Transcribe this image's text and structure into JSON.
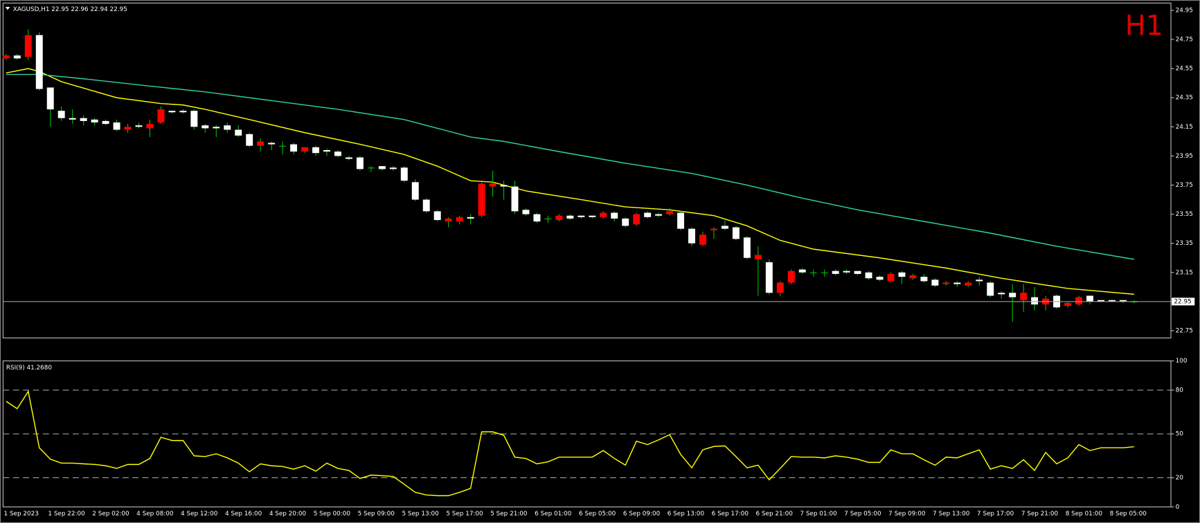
{
  "chart_data": [
    {
      "type": "candlestick",
      "title": "XAGUSD,H1  22.95 22.96 22.94 22.95",
      "annotation": "H1",
      "categories": [
        "1 Sep 2023",
        null,
        null,
        null,
        "1 Sep 22:00",
        null,
        null,
        null,
        "2 Sep 02:00",
        null,
        null,
        null,
        "4 Sep 08:00",
        null,
        null,
        null,
        "4 Sep 12:00",
        null,
        null,
        null,
        "4 Sep 16:00",
        null,
        null,
        null,
        "4 Sep 20:00",
        null,
        null,
        null,
        "5 Sep 00:00",
        null,
        null,
        null,
        "5 Sep 09:00",
        null,
        null,
        null,
        "5 Sep 13:00",
        null,
        null,
        null,
        "5 Sep 17:00",
        null,
        null,
        null,
        "5 Sep 21:00",
        null,
        null,
        null,
        "6 Sep 01:00",
        null,
        null,
        null,
        "6 Sep 05:00",
        null,
        null,
        null,
        "6 Sep 09:00",
        null,
        null,
        null,
        "6 Sep 13:00",
        null,
        null,
        null,
        "6 Sep 17:00",
        null,
        null,
        null,
        "6 Sep 21:00",
        null,
        null,
        null,
        "7 Sep 01:00",
        null,
        null,
        null,
        "7 Sep 05:00",
        null,
        null,
        null,
        "7 Sep 09:00",
        null,
        null,
        null,
        "7 Sep 13:00",
        null,
        null,
        null,
        "7 Sep 17:00",
        null,
        null,
        null,
        "7 Sep 21:00",
        null,
        null,
        null,
        "8 Sep 01:00",
        null,
        null,
        null,
        "8 Sep 05:00",
        null,
        null
      ],
      "ohlc": [
        [
          24.62,
          24.65,
          24.61,
          24.64
        ],
        [
          24.64,
          24.65,
          24.61,
          24.62
        ],
        [
          24.63,
          24.82,
          24.61,
          24.78
        ],
        [
          24.78,
          24.8,
          24.4,
          24.41
        ],
        [
          24.42,
          24.42,
          24.15,
          24.27
        ],
        [
          24.26,
          24.29,
          24.19,
          24.21
        ],
        [
          24.21,
          24.27,
          24.17,
          24.2
        ],
        [
          24.21,
          24.23,
          24.16,
          24.19
        ],
        [
          24.2,
          24.21,
          24.16,
          24.18
        ],
        [
          24.19,
          24.2,
          24.16,
          24.17
        ],
        [
          24.18,
          24.2,
          24.12,
          24.13
        ],
        [
          24.13,
          24.17,
          24.11,
          24.15
        ],
        [
          24.16,
          24.18,
          24.14,
          24.15
        ],
        [
          24.14,
          24.2,
          24.08,
          24.17
        ],
        [
          24.18,
          24.29,
          24.17,
          24.27
        ],
        [
          24.26,
          24.26,
          24.24,
          24.25
        ],
        [
          24.26,
          24.27,
          24.24,
          24.25
        ],
        [
          24.26,
          24.27,
          24.13,
          24.15
        ],
        [
          24.16,
          24.17,
          24.11,
          24.14
        ],
        [
          24.15,
          24.16,
          24.08,
          24.14
        ],
        [
          24.16,
          24.18,
          24.11,
          24.13
        ],
        [
          24.13,
          24.16,
          24.08,
          24.09
        ],
        [
          24.1,
          24.11,
          24.01,
          24.02
        ],
        [
          24.02,
          24.07,
          23.98,
          24.05
        ],
        [
          24.04,
          24.05,
          23.99,
          24.03
        ],
        [
          24.02,
          24.05,
          23.96,
          24.02
        ],
        [
          24.03,
          24.04,
          23.96,
          23.98
        ],
        [
          23.98,
          24.01,
          23.97,
          24.01
        ],
        [
          24.01,
          24.02,
          23.95,
          23.97
        ],
        [
          23.99,
          24.0,
          23.95,
          23.98
        ],
        [
          23.98,
          23.99,
          23.94,
          23.95
        ],
        [
          23.94,
          23.95,
          23.92,
          23.93
        ],
        [
          23.94,
          23.95,
          23.85,
          23.86
        ],
        [
          23.87,
          23.88,
          23.84,
          23.87
        ],
        [
          23.88,
          23.88,
          23.85,
          23.86
        ],
        [
          23.87,
          23.88,
          23.85,
          23.86
        ],
        [
          23.87,
          23.88,
          23.77,
          23.78
        ],
        [
          23.77,
          23.79,
          23.64,
          23.65
        ],
        [
          23.65,
          23.66,
          23.56,
          23.57
        ],
        [
          23.57,
          23.58,
          23.5,
          23.51
        ],
        [
          23.5,
          23.53,
          23.46,
          23.52
        ],
        [
          23.5,
          23.54,
          23.48,
          23.53
        ],
        [
          23.53,
          23.55,
          23.48,
          23.52
        ],
        [
          23.54,
          23.77,
          23.53,
          23.76
        ],
        [
          23.74,
          23.85,
          23.67,
          23.76
        ],
        [
          23.75,
          23.78,
          23.65,
          23.74
        ],
        [
          23.74,
          23.78,
          23.55,
          23.57
        ],
        [
          23.58,
          23.59,
          23.54,
          23.55
        ],
        [
          23.55,
          23.56,
          23.49,
          23.5
        ],
        [
          23.52,
          23.54,
          23.49,
          23.52
        ],
        [
          23.51,
          23.55,
          23.5,
          23.54
        ],
        [
          23.54,
          23.55,
          23.51,
          23.52
        ],
        [
          23.54,
          23.54,
          23.52,
          23.53
        ],
        [
          23.54,
          23.54,
          23.52,
          23.53
        ],
        [
          23.53,
          23.57,
          23.52,
          23.56
        ],
        [
          23.56,
          23.57,
          23.5,
          23.52
        ],
        [
          23.52,
          23.53,
          23.46,
          23.47
        ],
        [
          23.48,
          23.56,
          23.47,
          23.55
        ],
        [
          23.56,
          23.57,
          23.52,
          23.53
        ],
        [
          23.55,
          23.56,
          23.53,
          23.54
        ],
        [
          23.55,
          23.59,
          23.54,
          23.57
        ],
        [
          23.56,
          23.57,
          23.44,
          23.45
        ],
        [
          23.45,
          23.46,
          23.33,
          23.35
        ],
        [
          23.34,
          23.43,
          23.33,
          23.41
        ],
        [
          23.44,
          23.46,
          23.38,
          23.45
        ],
        [
          23.47,
          23.51,
          23.44,
          23.45
        ],
        [
          23.46,
          23.47,
          23.37,
          23.38
        ],
        [
          23.39,
          23.4,
          23.24,
          23.25
        ],
        [
          23.24,
          23.33,
          22.99,
          23.27
        ],
        [
          23.22,
          23.24,
          23.0,
          23.01
        ],
        [
          23.01,
          23.09,
          22.99,
          23.08
        ],
        [
          23.08,
          23.17,
          23.07,
          23.16
        ],
        [
          23.17,
          23.18,
          23.14,
          23.15
        ],
        [
          23.15,
          23.17,
          23.12,
          23.15
        ],
        [
          23.15,
          23.17,
          23.12,
          23.15
        ],
        [
          23.16,
          23.17,
          23.13,
          23.14
        ],
        [
          23.16,
          23.17,
          23.14,
          23.15
        ],
        [
          23.16,
          23.16,
          23.13,
          23.14
        ],
        [
          23.15,
          23.16,
          23.1,
          23.11
        ],
        [
          23.12,
          23.13,
          23.09,
          23.1
        ],
        [
          23.09,
          23.15,
          23.08,
          23.14
        ],
        [
          23.15,
          23.16,
          23.07,
          23.12
        ],
        [
          23.11,
          23.14,
          23.1,
          23.13
        ],
        [
          23.12,
          23.14,
          23.08,
          23.09
        ],
        [
          23.1,
          23.11,
          23.05,
          23.06
        ],
        [
          23.07,
          23.09,
          23.06,
          23.08
        ],
        [
          23.08,
          23.09,
          23.05,
          23.07
        ],
        [
          23.06,
          23.09,
          23.05,
          23.08
        ],
        [
          23.1,
          23.12,
          23.06,
          23.09
        ],
        [
          23.08,
          23.09,
          22.98,
          22.99
        ],
        [
          23.01,
          23.02,
          22.97,
          23.0
        ],
        [
          23.01,
          23.07,
          22.81,
          22.98
        ],
        [
          22.96,
          23.07,
          22.88,
          23.01
        ],
        [
          22.98,
          23.05,
          22.89,
          22.93
        ],
        [
          22.93,
          22.99,
          22.89,
          22.97
        ],
        [
          22.99,
          23.0,
          22.9,
          22.91
        ],
        [
          22.92,
          22.95,
          22.91,
          22.94
        ],
        [
          22.93,
          22.99,
          22.92,
          22.98
        ],
        [
          22.99,
          22.99,
          22.93,
          22.95
        ],
        [
          22.96,
          22.96,
          22.95,
          22.95
        ],
        [
          22.96,
          22.96,
          22.95,
          22.95
        ],
        [
          22.96,
          22.96,
          22.94,
          22.95
        ],
        [
          22.95,
          22.96,
          22.94,
          22.95
        ]
      ],
      "up_color": "#ff0000",
      "down_color": "#ffffff",
      "wick_color": "#00c000",
      "lines": [
        {
          "color": "#ffff00",
          "x": [
            0,
            2,
            3,
            5,
            10,
            14,
            16,
            18,
            22,
            27,
            32,
            36,
            39,
            42,
            44,
            47,
            52,
            56,
            60,
            64,
            67,
            70,
            73,
            79,
            85,
            90,
            96,
            102
          ],
          "values": [
            24.52,
            24.55,
            24.53,
            24.46,
            24.35,
            24.31,
            24.3,
            24.27,
            24.2,
            24.11,
            24.03,
            23.96,
            23.88,
            23.78,
            23.77,
            23.71,
            23.65,
            23.6,
            23.58,
            23.54,
            23.47,
            23.37,
            23.31,
            23.25,
            23.18,
            23.11,
            23.04,
            23.0
          ]
        },
        {
          "color": "#2fd3a8",
          "x": [
            0,
            3,
            7,
            13,
            18,
            24,
            30,
            36,
            42,
            45,
            50,
            56,
            62,
            67,
            72,
            77,
            83,
            89,
            95,
            102
          ],
          "values": [
            24.51,
            24.51,
            24.48,
            24.43,
            24.39,
            24.33,
            24.27,
            24.2,
            24.08,
            24.05,
            23.98,
            23.9,
            23.83,
            23.75,
            23.66,
            23.58,
            23.5,
            23.42,
            23.33,
            23.24
          ]
        }
      ],
      "price_line": 22.95,
      "ylim": [
        22.7,
        25.0
      ],
      "yticks": [
        22.75,
        22.95,
        23.15,
        23.35,
        23.55,
        23.75,
        23.95,
        24.15,
        24.35,
        24.55,
        24.75,
        24.95
      ]
    },
    {
      "type": "line",
      "title": "RSI(9) 41.2680",
      "color": "#ffff00",
      "values": [
        72.3,
        67.3,
        79.1,
        40.5,
        32.7,
        30.0,
        30.0,
        29.5,
        29.1,
        28.2,
        26.4,
        29.1,
        29.1,
        33.2,
        47.7,
        45.5,
        45.5,
        35.0,
        34.5,
        36.4,
        33.6,
        30.0,
        24.1,
        29.5,
        28.2,
        27.7,
        25.9,
        28.2,
        24.5,
        30.0,
        26.4,
        25.0,
        19.5,
        21.8,
        21.4,
        20.9,
        15.5,
        10.0,
        8.2,
        7.7,
        7.7,
        10.0,
        12.7,
        51.4,
        51.4,
        49.1,
        34.1,
        33.2,
        29.5,
        30.9,
        34.1,
        34.1,
        34.1,
        34.1,
        38.6,
        33.2,
        28.6,
        45.0,
        42.7,
        45.9,
        49.5,
        35.9,
        26.8,
        39.1,
        41.4,
        41.8,
        34.5,
        26.8,
        28.6,
        18.6,
        26.4,
        34.5,
        34.1,
        34.1,
        33.6,
        35.0,
        34.1,
        32.7,
        30.5,
        30.5,
        39.1,
        36.4,
        36.4,
        32.3,
        28.6,
        34.1,
        33.6,
        36.4,
        39.1,
        25.9,
        28.2,
        26.4,
        32.3,
        25.0,
        37.3,
        29.5,
        33.6,
        42.7,
        38.6,
        40.5,
        40.5,
        40.5,
        41.27
      ],
      "levels": [
        20,
        50,
        80
      ],
      "ylim": [
        0,
        100
      ],
      "yticks": [
        0,
        20,
        50,
        80,
        100
      ]
    }
  ]
}
